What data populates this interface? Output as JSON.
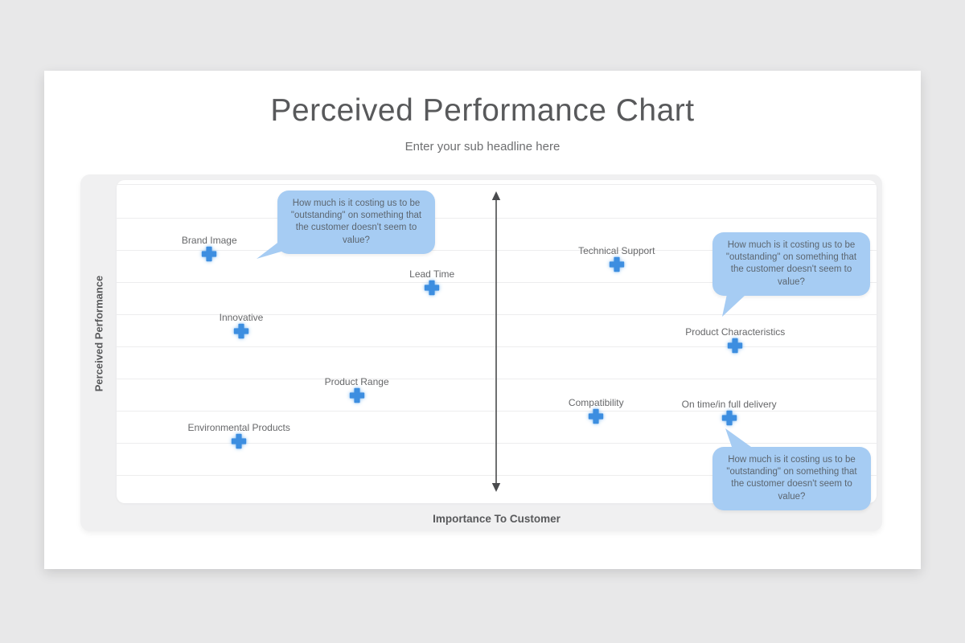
{
  "slide": {
    "title": "Perceived Performance Chart",
    "subtitle": "Enter your sub headline here"
  },
  "chart_data": {
    "type": "scatter",
    "title": "Perceived Performance Chart",
    "subtitle": "Enter your sub headline here",
    "xlabel": "Importance To Customer",
    "ylabel": "Perceived Performance",
    "x_range": [
      0,
      100
    ],
    "y_range": [
      0,
      100
    ],
    "grid": "horizontal-lines-only",
    "legend": "none",
    "marker": {
      "shape": "plus",
      "color": "#3d8ee0",
      "halo_color": "#aed2f2"
    },
    "points": [
      {
        "label": "Brand Image",
        "importance": 12.2,
        "performance": 77.1
      },
      {
        "label": "Lead Time",
        "importance": 41.5,
        "performance": 66.7
      },
      {
        "label": "Technical Support",
        "importance": 65.8,
        "performance": 73.9
      },
      {
        "label": "Innovative",
        "importance": 16.4,
        "performance": 53.2
      },
      {
        "label": "Product Characteristics",
        "importance": 81.4,
        "performance": 48.8
      },
      {
        "label": "Product Range",
        "importance": 31.6,
        "performance": 33.3
      },
      {
        "label": "Compatibility",
        "importance": 63.1,
        "performance": 26.9
      },
      {
        "label": "On time/in full delivery",
        "importance": 80.6,
        "performance": 26.4
      },
      {
        "label": "Environmental Products",
        "importance": 16.1,
        "performance": 19.2
      }
    ],
    "callouts": [
      {
        "text": "How much is it costing us to be \"outstanding\" on something that the customer doesn't seem to value?",
        "tail_direction": "lower-left",
        "near_point": "Brand Image"
      },
      {
        "text": "How much is it costing us to be \"outstanding\" on something that the customer doesn't seem to value?",
        "tail_direction": "down-left",
        "near_point": "Product Characteristics"
      },
      {
        "text": "How much is it costing us to be \"outstanding\" on something that the customer doesn't seem to value?",
        "tail_direction": "up-left",
        "near_point": "On time/in full delivery"
      }
    ],
    "colors": {
      "bubble": "#a6ccf3",
      "bubble_text": "#5c6670",
      "marker": "#3d8ee0",
      "arrow": "#4a4b4d",
      "panel": "#f0f0f1",
      "page_background": "#e8e8e9",
      "title_text": "#58595b"
    }
  }
}
